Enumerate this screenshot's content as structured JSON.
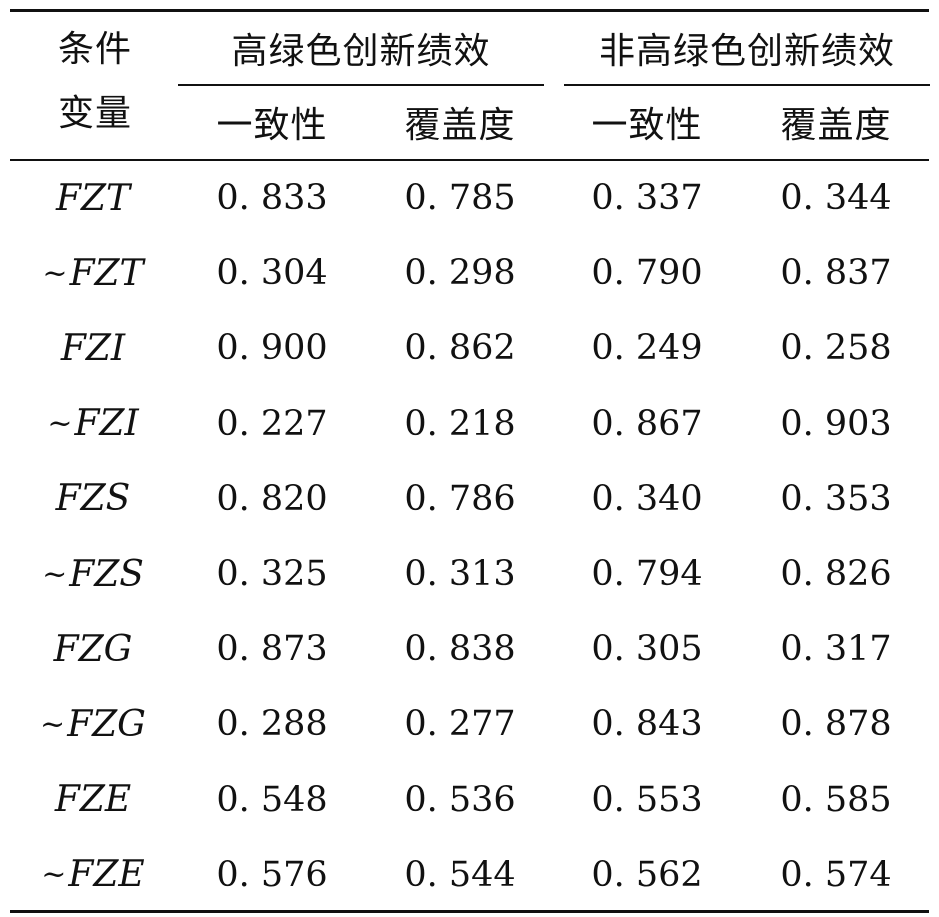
{
  "table": {
    "cond_header_line1": "条件",
    "cond_header_line2": "变量",
    "group_headers": [
      "高绿色创新绩效",
      "非高绿色创新绩效"
    ],
    "sub_headers": [
      "一致性",
      "覆盖度",
      "一致性",
      "覆盖度"
    ],
    "rows": [
      {
        "prefix": "",
        "label": "FZT",
        "values": [
          "0. 833",
          "0. 785",
          "0. 337",
          "0. 344"
        ]
      },
      {
        "prefix": "~",
        "label": "FZT",
        "values": [
          "0. 304",
          "0. 298",
          "0. 790",
          "0. 837"
        ]
      },
      {
        "prefix": "",
        "label": "FZI",
        "values": [
          "0. 900",
          "0. 862",
          "0. 249",
          "0. 258"
        ]
      },
      {
        "prefix": "~",
        "label": "FZI",
        "values": [
          "0. 227",
          "0. 218",
          "0. 867",
          "0. 903"
        ]
      },
      {
        "prefix": "",
        "label": "FZS",
        "values": [
          "0. 820",
          "0. 786",
          "0. 340",
          "0. 353"
        ]
      },
      {
        "prefix": "~",
        "label": "FZS",
        "values": [
          "0. 325",
          "0. 313",
          "0. 794",
          "0. 826"
        ]
      },
      {
        "prefix": "",
        "label": "FZG",
        "values": [
          "0. 873",
          "0. 838",
          "0. 305",
          "0. 317"
        ]
      },
      {
        "prefix": "~",
        "label": "FZG",
        "values": [
          "0. 288",
          "0. 277",
          "0. 843",
          "0. 878"
        ]
      },
      {
        "prefix": "",
        "label": "FZE",
        "values": [
          "0. 548",
          "0. 536",
          "0. 553",
          "0. 585"
        ]
      },
      {
        "prefix": "~",
        "label": "FZE",
        "values": [
          "0. 576",
          "0. 544",
          "0. 562",
          "0. 574"
        ]
      }
    ]
  }
}
